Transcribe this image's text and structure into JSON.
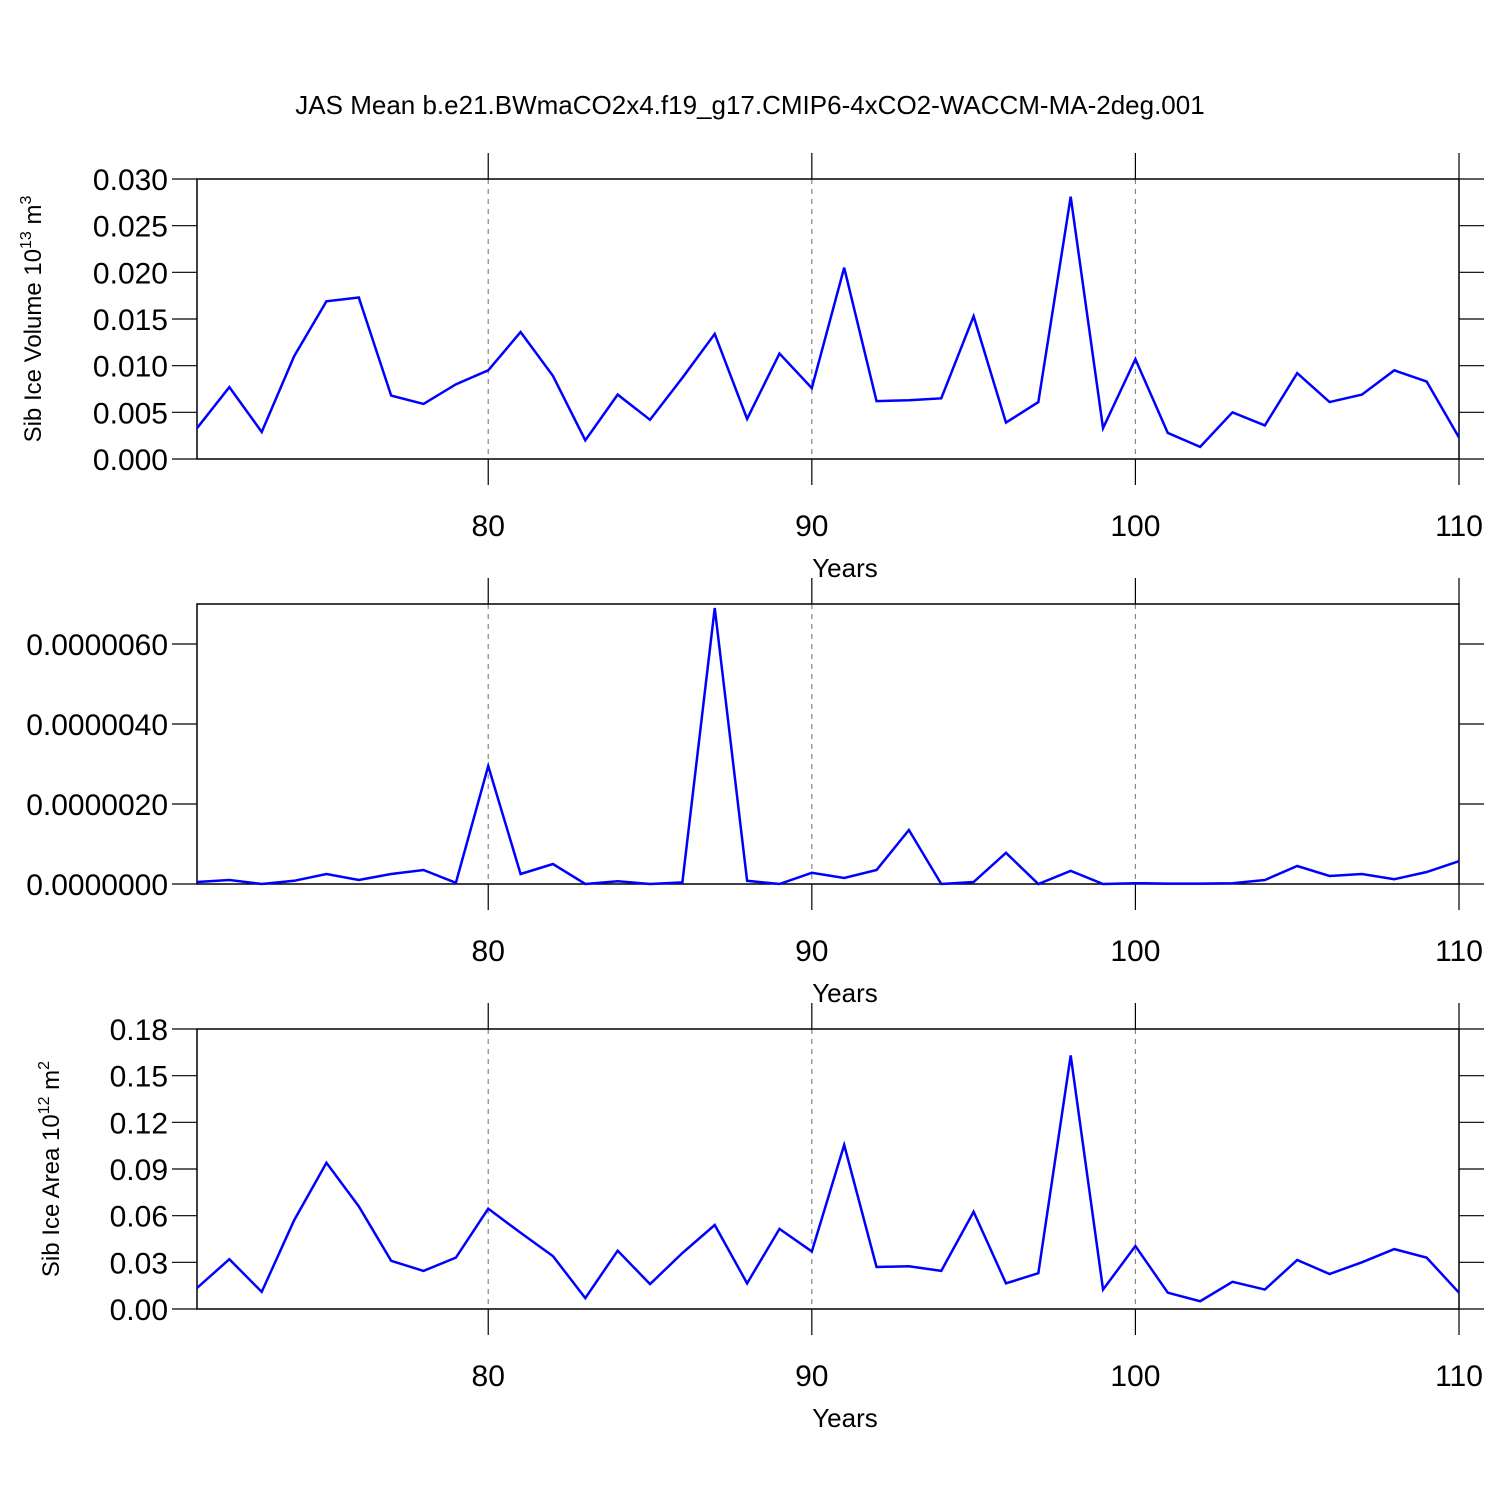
{
  "title": "JAS Mean b.e21.BWmaCO2x4.f19_g17.CMIP6-4xCO2-WACCM-MA-2deg.001",
  "chart_data": [
    {
      "type": "line",
      "ylabel_parts": [
        "Sib Ice Volume 10",
        "13",
        " m",
        "3"
      ],
      "xlabel": "Years",
      "x": [
        71,
        72,
        73,
        74,
        75,
        76,
        77,
        78,
        79,
        80,
        81,
        82,
        83,
        84,
        85,
        86,
        87,
        88,
        89,
        90,
        91,
        92,
        93,
        94,
        95,
        96,
        97,
        98,
        99,
        100,
        101,
        102,
        103,
        104,
        105,
        106,
        107,
        108,
        109,
        110
      ],
      "series": [
        {
          "color": "#0000ff",
          "values": [
            0.0033,
            0.0077,
            0.0029,
            0.011,
            0.0169,
            0.0173,
            0.0068,
            0.0059,
            0.008,
            0.0095,
            0.0136,
            0.0089,
            0.002,
            0.0069,
            0.0042,
            0.0087,
            0.0134,
            0.0043,
            0.0113,
            0.0076,
            0.0205,
            0.0062,
            0.0063,
            0.0065,
            0.0153,
            0.0039,
            0.0061,
            0.0281,
            0.0033,
            0.0107,
            0.0028,
            0.0013,
            0.005,
            0.0036,
            0.0092,
            0.0061,
            0.0069,
            0.0095,
            0.0083,
            0.0023
          ]
        }
      ],
      "xlim": [
        71,
        110
      ],
      "xticks": [
        80,
        90,
        100,
        110
      ],
      "ylim": [
        0,
        0.03
      ],
      "yticks": [
        {
          "value": 0,
          "label": "0.000"
        },
        {
          "value": 0.005,
          "label": "0.005"
        },
        {
          "value": 0.01,
          "label": "0.010"
        },
        {
          "value": 0.015,
          "label": "0.015"
        },
        {
          "value": 0.02,
          "label": "0.020"
        },
        {
          "value": 0.025,
          "label": "0.025"
        },
        {
          "value": 0.03,
          "label": "0.030"
        }
      ],
      "grid": "x-dashed"
    },
    {
      "type": "line",
      "xlabel": "Years",
      "x": [
        71,
        72,
        73,
        74,
        75,
        76,
        77,
        78,
        79,
        80,
        81,
        82,
        83,
        84,
        85,
        86,
        87,
        88,
        89,
        90,
        91,
        92,
        93,
        94,
        95,
        96,
        97,
        98,
        99,
        100,
        101,
        102,
        103,
        104,
        105,
        106,
        107,
        108,
        109,
        110
      ],
      "series": [
        {
          "color": "#0000ff",
          "values": [
            5e-08,
            1e-07,
            0,
            8e-08,
            2.5e-07,
            1e-07,
            2.5e-07,
            3.5e-07,
            3e-08,
            2.95e-06,
            2.5e-07,
            5e-07,
            0,
            7e-08,
            0,
            4e-08,
            6.9e-06,
            8e-08,
            0,
            2.8e-07,
            1.5e-07,
            3.5e-07,
            1.35e-06,
            0,
            5e-08,
            7.8e-07,
            0,
            3.3e-07,
            0,
            2e-08,
            1e-08,
            1e-08,
            2e-08,
            1e-07,
            4.5e-07,
            2e-07,
            2.5e-07,
            1.2e-07,
            3e-07,
            5.7e-07
          ]
        }
      ],
      "xlim": [
        71,
        110
      ],
      "xticks": [
        80,
        90,
        100,
        110
      ],
      "ylim": [
        0,
        7e-06
      ],
      "yticks": [
        {
          "value": 0,
          "label": "0.0000000"
        },
        {
          "value": 2e-06,
          "label": "0.0000020"
        },
        {
          "value": 4e-06,
          "label": "0.0000040"
        },
        {
          "value": 6e-06,
          "label": "0.0000060"
        }
      ],
      "grid": "x-dashed"
    },
    {
      "type": "line",
      "ylabel_parts": [
        "Sib Ice Area 10",
        "12",
        " m",
        "2"
      ],
      "xlabel": "Years",
      "x": [
        71,
        72,
        73,
        74,
        75,
        76,
        77,
        78,
        79,
        80,
        81,
        82,
        83,
        84,
        85,
        86,
        87,
        88,
        89,
        90,
        91,
        92,
        93,
        94,
        95,
        96,
        97,
        98,
        99,
        100,
        101,
        102,
        103,
        104,
        105,
        106,
        107,
        108,
        109,
        110
      ],
      "series": [
        {
          "color": "#0000ff",
          "values": [
            0.0135,
            0.032,
            0.011,
            0.057,
            0.094,
            0.066,
            0.031,
            0.0245,
            0.033,
            0.0645,
            0.049,
            0.034,
            0.007,
            0.0375,
            0.016,
            0.036,
            0.054,
            0.0165,
            0.0515,
            0.037,
            0.1055,
            0.027,
            0.0275,
            0.0245,
            0.0625,
            0.0165,
            0.023,
            0.163,
            0.0125,
            0.0405,
            0.0105,
            0.005,
            0.0175,
            0.0125,
            0.0315,
            0.0225,
            0.03,
            0.0385,
            0.033,
            0.0105
          ]
        }
      ],
      "xlim": [
        71,
        110
      ],
      "xticks": [
        80,
        90,
        100,
        110
      ],
      "ylim": [
        0,
        0.18
      ],
      "yticks": [
        {
          "value": 0,
          "label": "0.00"
        },
        {
          "value": 0.03,
          "label": "0.03"
        },
        {
          "value": 0.06,
          "label": "0.06"
        },
        {
          "value": 0.09,
          "label": "0.09"
        },
        {
          "value": 0.12,
          "label": "0.12"
        },
        {
          "value": 0.15,
          "label": "0.15"
        },
        {
          "value": 0.18,
          "label": "0.18"
        }
      ],
      "grid": "x-dashed"
    }
  ]
}
